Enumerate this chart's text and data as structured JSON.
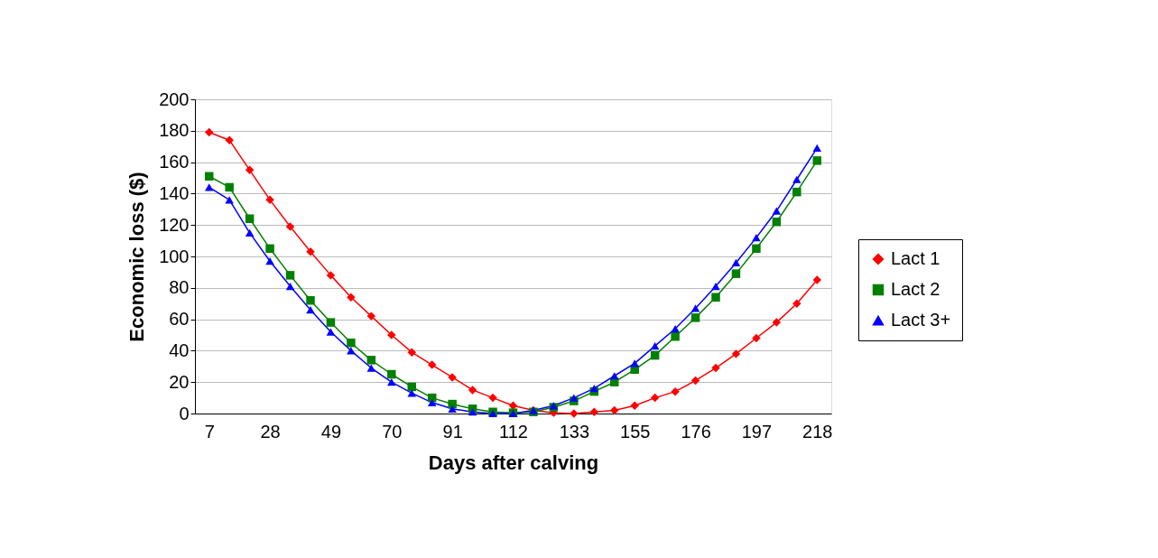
{
  "chart_data": {
    "type": "line",
    "xlabel": "Days after calving",
    "ylabel": "Economic loss ($)",
    "categories": [
      "7",
      null,
      null,
      "28",
      null,
      null,
      "49",
      null,
      null,
      "70",
      null,
      null,
      "91",
      null,
      null,
      "112",
      null,
      null,
      "133",
      null,
      null,
      "155",
      null,
      null,
      "176",
      null,
      null,
      "197",
      null,
      null,
      "218"
    ],
    "ylim": [
      0,
      200
    ],
    "yticks": [
      0,
      20,
      40,
      60,
      80,
      100,
      120,
      140,
      160,
      180,
      200
    ],
    "grid": "y",
    "legend": "right",
    "line_style": "solid",
    "series": [
      {
        "name": "Lact 1",
        "color": "#ff0000",
        "marker": "diamond",
        "values": [
          179,
          174,
          155,
          136,
          119,
          103,
          88,
          74,
          62,
          50,
          39,
          31,
          23,
          15,
          10,
          5,
          2,
          0.5,
          0,
          1,
          2,
          5,
          10,
          14,
          21,
          29,
          38,
          48,
          58,
          70,
          85
        ]
      },
      {
        "name": "Lact 2",
        "color": "#008000",
        "marker": "square",
        "values": [
          151,
          144,
          124,
          105,
          88,
          72,
          58,
          45,
          34,
          25,
          17,
          10,
          6,
          3,
          1,
          0.5,
          1,
          4,
          8,
          14,
          20,
          28,
          37,
          49,
          61,
          74,
          89,
          105,
          122,
          141,
          161
        ]
      },
      {
        "name": "Lact 3+",
        "color": "#0000ff",
        "marker": "triangle",
        "values": [
          144,
          136,
          115,
          97,
          81,
          66,
          52,
          40,
          29,
          20,
          13,
          7,
          3,
          1,
          0,
          0,
          2,
          5,
          10,
          16,
          24,
          32,
          43,
          54,
          67,
          81,
          96,
          112,
          129,
          149,
          169
        ]
      }
    ]
  }
}
